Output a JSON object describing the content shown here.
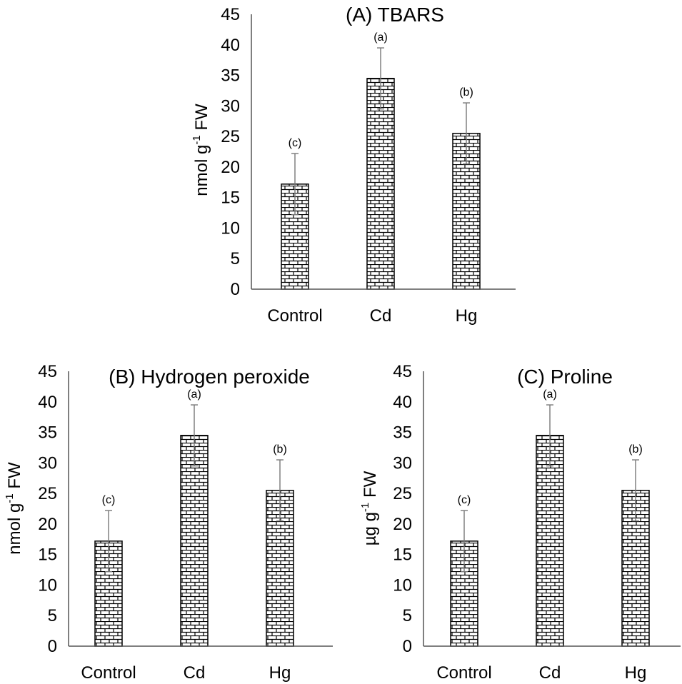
{
  "chart_data": [
    {
      "type": "bar",
      "title": "(A) TBARS",
      "ylabel_pre": "nmol g",
      "ylabel_sup": "-1",
      "ylabel_post": " FW",
      "categories": [
        "Control",
        "Cd",
        "Hg"
      ],
      "values": [
        17.2,
        34.5,
        25.5
      ],
      "errors": [
        5.0,
        5.0,
        5.0
      ],
      "letters": [
        "(c)",
        "(a)",
        "(b)"
      ],
      "ylim": [
        0,
        45
      ],
      "yticks": [
        "0",
        "5",
        "10",
        "15",
        "20",
        "25",
        "30",
        "35",
        "40",
        "45"
      ]
    },
    {
      "type": "bar",
      "title": "(B) Hydrogen peroxide",
      "ylabel_pre": "nmol g",
      "ylabel_sup": "-1",
      "ylabel_post": " FW",
      "categories": [
        "Control",
        "Cd",
        "Hg"
      ],
      "values": [
        17.2,
        34.5,
        25.5
      ],
      "errors": [
        5.0,
        5.0,
        5.0
      ],
      "letters": [
        "(c)",
        "(a)",
        "(b)"
      ],
      "ylim": [
        0,
        45
      ],
      "yticks": [
        "0",
        "5",
        "10",
        "15",
        "20",
        "25",
        "30",
        "35",
        "40",
        "45"
      ]
    },
    {
      "type": "bar",
      "title": "(C) Proline",
      "ylabel_pre": "µg g",
      "ylabel_sup": "-1",
      "ylabel_post": " FW",
      "categories": [
        "Control",
        "Cd",
        "Hg"
      ],
      "values": [
        17.2,
        34.5,
        25.5
      ],
      "errors": [
        5.0,
        5.0,
        5.0
      ],
      "letters": [
        "(c)",
        "(a)",
        "(b)"
      ],
      "ylim": [
        0,
        45
      ],
      "yticks": [
        "0",
        "5",
        "10",
        "15",
        "20",
        "25",
        "30",
        "35",
        "40",
        "45"
      ]
    }
  ]
}
